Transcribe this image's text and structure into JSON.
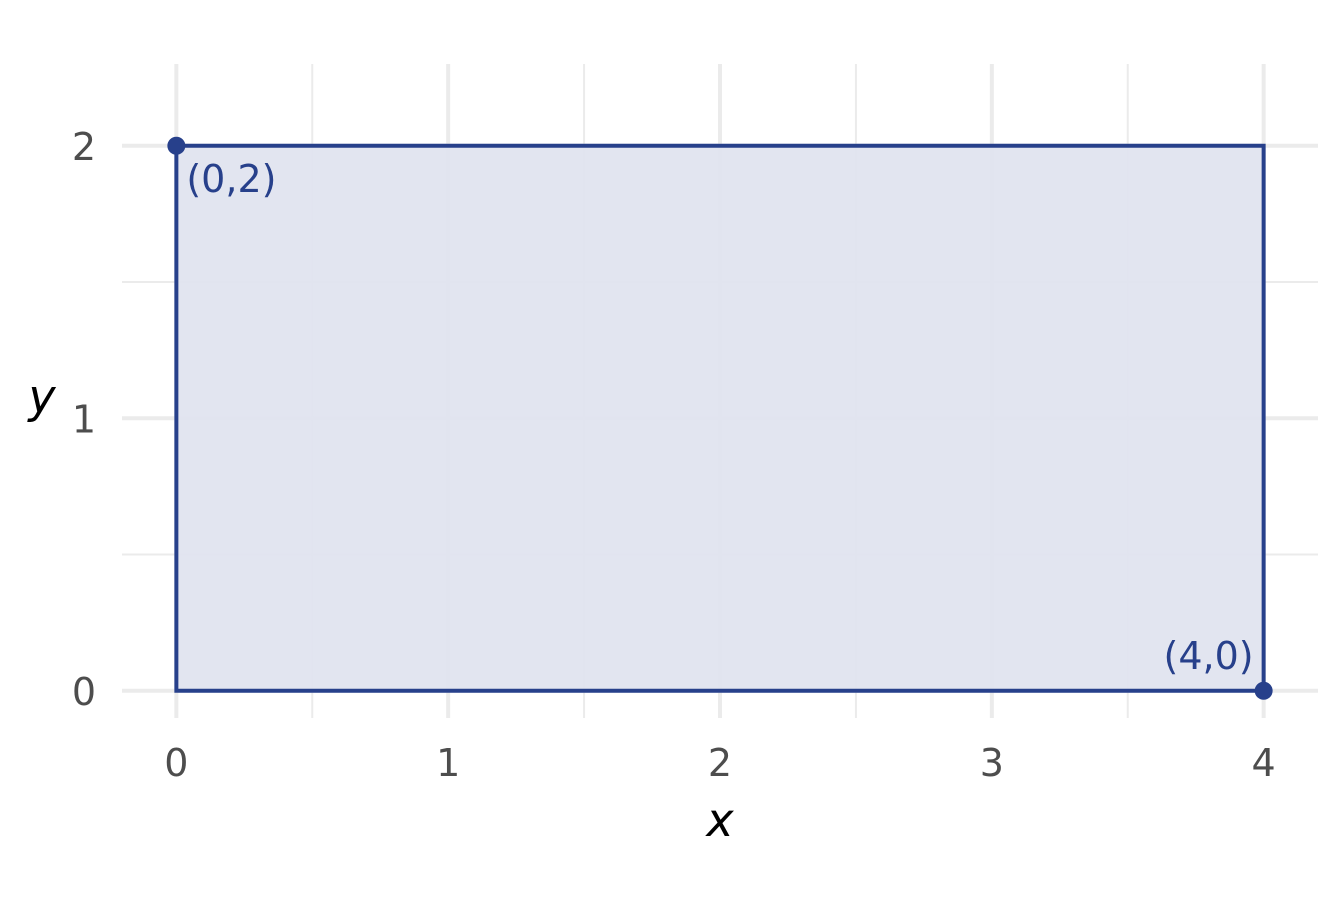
{
  "chart_data": {
    "type": "area",
    "title": "",
    "xlabel": "x",
    "ylabel": "y",
    "xlim": [
      -0.2,
      4.2
    ],
    "ylim": [
      -0.1,
      2.3
    ],
    "x_ticks": [
      0,
      1,
      2,
      3,
      4
    ],
    "y_ticks": [
      0,
      1,
      2
    ],
    "x_tick_labels": [
      "0",
      "1",
      "2",
      "3",
      "4"
    ],
    "y_tick_labels": [
      "0",
      "1",
      "2"
    ],
    "grid": true,
    "region": {
      "shape": "rectangle",
      "x": [
        0,
        4
      ],
      "y": [
        0,
        2
      ],
      "fill_color": "#dfe3ef",
      "stroke_color": "#27408b"
    },
    "points": [
      {
        "x": 0,
        "y": 2,
        "label": "(0,2)"
      },
      {
        "x": 4,
        "y": 0,
        "label": "(4,0)"
      }
    ],
    "colors": {
      "accent": "#27408b",
      "region_fill": "#dfe3ef",
      "grid": "#ebebeb",
      "tick_text": "#4d4d4d"
    }
  }
}
